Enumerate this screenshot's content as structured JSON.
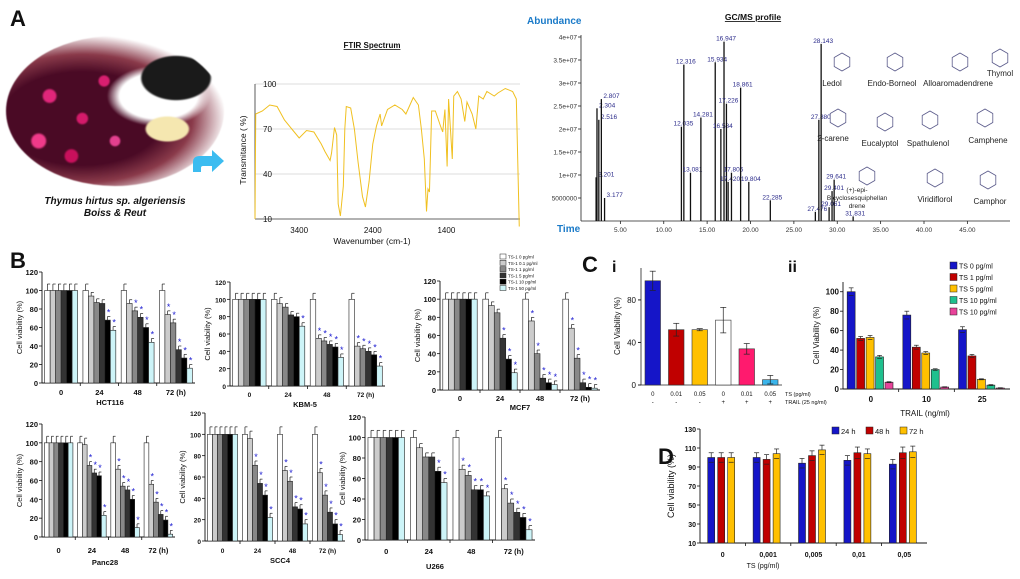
{
  "panel_labels": {
    "A": "A",
    "B": "B",
    "C": "C",
    "C_i": "i",
    "C_ii": "ii",
    "D": "D"
  },
  "photo": {
    "caption_line1": "Thymus hirtus sp. algeriensis",
    "caption_line2": "Boiss & Reut"
  },
  "structures": [
    "Ledol",
    "Endo-Borneol",
    "Alloaromadendrene",
    "Thymol",
    "2-carene",
    "Eucalyptol",
    "Spathulenol",
    "Camphene",
    "(+)-epi-",
    "Bicyclosesquiphellan",
    "drene",
    "Viridiflorol",
    "Camphor"
  ],
  "b_legend": {
    "labels": [
      "TS-1 0 pg/ml",
      "TS-1 0.1 pg/ml",
      "TS-1 1 pg/ml",
      "TS-1 5 pg/ml",
      "TS-1 10 pg/ml",
      "TS-1 50 pg/ml"
    ],
    "colors": [
      "#ffffff",
      "#cccccc",
      "#888888",
      "#333333",
      "#000000",
      "#cdf4f8"
    ]
  },
  "chart_data": [
    {
      "id": "ftir",
      "type": "line",
      "title": "FTIR  Spectrum",
      "xlabel": "Wavenumber (cm-1)",
      "ylabel": "Transmitance ( %)",
      "xlim": [
        4000,
        400
      ],
      "ylim": [
        10,
        100
      ],
      "xticks": [
        3400,
        2400,
        1400
      ],
      "yticks": [
        10,
        40,
        70,
        100
      ],
      "color": "#f0c020",
      "points": [
        [
          4000,
          10
        ],
        [
          3990,
          80
        ],
        [
          3900,
          82
        ],
        [
          3800,
          86
        ],
        [
          3700,
          85
        ],
        [
          3600,
          76
        ],
        [
          3500,
          70
        ],
        [
          3400,
          64
        ],
        [
          3300,
          69
        ],
        [
          3200,
          68
        ],
        [
          3100,
          60
        ],
        [
          3050,
          55
        ],
        [
          2980,
          49
        ],
        [
          2960,
          54
        ],
        [
          2920,
          71
        ],
        [
          2890,
          66
        ],
        [
          2870,
          20
        ],
        [
          2840,
          12
        ],
        [
          2800,
          32
        ],
        [
          2780,
          70
        ],
        [
          2760,
          85
        ],
        [
          2700,
          84
        ],
        [
          2650,
          70
        ],
        [
          2600,
          48
        ],
        [
          2540,
          25
        ],
        [
          2500,
          18
        ],
        [
          2450,
          35
        ],
        [
          2400,
          60
        ],
        [
          2350,
          72
        ],
        [
          2300,
          80
        ],
        [
          2280,
          72
        ],
        [
          2200,
          83
        ],
        [
          2100,
          86
        ],
        [
          2000,
          83
        ],
        [
          1950,
          80
        ],
        [
          1850,
          91
        ],
        [
          1780,
          86
        ],
        [
          1740,
          70
        ],
        [
          1700,
          50
        ],
        [
          1670,
          15
        ],
        [
          1650,
          30
        ],
        [
          1630,
          28
        ],
        [
          1600,
          82
        ],
        [
          1550,
          82
        ],
        [
          1480,
          72
        ],
        [
          1450,
          68
        ],
        [
          1420,
          83
        ],
        [
          1390,
          45
        ],
        [
          1370,
          90
        ],
        [
          1320,
          50
        ],
        [
          1300,
          92
        ],
        [
          1250,
          95
        ],
        [
          1200,
          90
        ],
        [
          1150,
          75
        ],
        [
          1120,
          88
        ],
        [
          1050,
          80
        ],
        [
          1000,
          70
        ],
        [
          960,
          92
        ],
        [
          900,
          90
        ],
        [
          850,
          95
        ],
        [
          750,
          92
        ],
        [
          700,
          94
        ],
        [
          600,
          97
        ],
        [
          500,
          95
        ],
        [
          450,
          90
        ],
        [
          410,
          5
        ]
      ]
    },
    {
      "id": "gcms",
      "type": "bar",
      "title": "GC/MS  profile",
      "ylabel": "Abundance",
      "xlabel": "Time",
      "xlim": [
        0.5,
        50
      ],
      "ylim": [
        0,
        40000000
      ],
      "yticks": [
        {
          "v": 5000000,
          "label": "5000000"
        },
        {
          "v": 10000000,
          "label": "1e+07"
        },
        {
          "v": 15000000,
          "label": "1.5e+07"
        },
        {
          "v": 20000000,
          "label": "2e+07"
        },
        {
          "v": 25000000,
          "label": "2.5e+07"
        },
        {
          "v": 30000000,
          "label": "3e+07"
        },
        {
          "v": 35000000,
          "label": "3.5e+07"
        },
        {
          "v": 40000000,
          "label": "4e+07"
        }
      ],
      "xticks": [
        {
          "v": 5,
          "label": "5.00"
        },
        {
          "v": 10,
          "label": "10.00"
        },
        {
          "v": 15,
          "label": "15.00"
        },
        {
          "v": 20,
          "label": "20.00"
        },
        {
          "v": 25,
          "label": "25.00"
        },
        {
          "v": 30,
          "label": "30.00"
        },
        {
          "v": 35,
          "label": "35.00"
        },
        {
          "v": 40,
          "label": "40.00"
        },
        {
          "v": 45,
          "label": "45.00"
        }
      ],
      "peaks": [
        {
          "t": 2.201,
          "a": 9500000,
          "label": "2.201"
        },
        {
          "t": 2.304,
          "a": 24500000,
          "label": "2.304"
        },
        {
          "t": 2.516,
          "a": 22000000,
          "label": "2.516"
        },
        {
          "t": 2.807,
          "a": 26500000,
          "label": "2.807"
        },
        {
          "t": 3.177,
          "a": 5000000,
          "label": "3.177"
        },
        {
          "t": 12.035,
          "a": 20500000,
          "label": "12.035"
        },
        {
          "t": 12.316,
          "a": 34000000,
          "label": "12.316"
        },
        {
          "t": 13.081,
          "a": 10500000,
          "label": "13.081"
        },
        {
          "t": 14.281,
          "a": 22500000,
          "label": "14.281"
        },
        {
          "t": 15.934,
          "a": 34500000,
          "label": "15.934"
        },
        {
          "t": 16.584,
          "a": 20000000,
          "label": "16.584"
        },
        {
          "t": 16.947,
          "a": 39000000,
          "label": "16.947"
        },
        {
          "t": 17.226,
          "a": 25500000,
          "label": "17.226"
        },
        {
          "t": 17.42,
          "a": 8500000,
          "label": "17.420"
        },
        {
          "t": 17.806,
          "a": 10500000,
          "label": "17.806"
        },
        {
          "t": 18.861,
          "a": 29000000,
          "label": "18.861"
        },
        {
          "t": 19.804,
          "a": 8500000,
          "label": "19.804"
        },
        {
          "t": 22.285,
          "a": 4500000,
          "label": "22.285"
        },
        {
          "t": 27.476,
          "a": 2000000,
          "label": "27.476"
        },
        {
          "t": 27.88,
          "a": 22000000,
          "label": "27.880"
        },
        {
          "t": 28.143,
          "a": 38500000,
          "label": "28.143"
        },
        {
          "t": 29.061,
          "a": 3000000,
          "label": "29.061"
        },
        {
          "t": 29.401,
          "a": 6500000,
          "label": "29.401"
        },
        {
          "t": 29.641,
          "a": 9000000,
          "label": "29.641"
        },
        {
          "t": 31.831,
          "a": 1000000,
          "label": "31.831"
        }
      ]
    },
    {
      "id": "hct116",
      "type": "bar",
      "cell_line": "HCT116",
      "ylabel": "Cell viability (%)",
      "ylim": [
        0,
        120
      ],
      "yticks": [
        0,
        20,
        40,
        60,
        80,
        100,
        120
      ],
      "categories": [
        "0",
        "24",
        "48",
        "72 (h)"
      ],
      "groups": [
        [
          100,
          100,
          100,
          100,
          100,
          100
        ],
        [
          100,
          94,
          87,
          86,
          68,
          57
        ],
        [
          100,
          86,
          78,
          71,
          60,
          44
        ],
        [
          100,
          74,
          65,
          36,
          27,
          16
        ]
      ]
    },
    {
      "id": "kbm5",
      "type": "bar",
      "cell_line": "KBM-5",
      "ylabel": "Cell viability (%)",
      "ylim": [
        0,
        120
      ],
      "yticks": [
        0,
        20,
        40,
        60,
        80,
        100,
        120
      ],
      "categories": [
        "0",
        "24",
        "48",
        "72 (h)"
      ],
      "groups": [
        [
          100,
          100,
          100,
          100,
          100,
          100
        ],
        [
          100,
          95,
          91,
          82,
          80,
          69
        ],
        [
          100,
          55,
          52,
          48,
          45,
          33
        ],
        [
          100,
          46,
          43,
          40,
          36,
          23
        ]
      ]
    },
    {
      "id": "mcf7",
      "type": "bar",
      "cell_line": "MCF7",
      "ylabel": "Cell viability (%)",
      "ylim": [
        0,
        120
      ],
      "yticks": [
        0,
        20,
        40,
        60,
        80,
        100,
        120
      ],
      "categories": [
        "0",
        "24",
        "48",
        "72 (h)"
      ],
      "groups": [
        [
          100,
          100,
          100,
          100,
          100,
          100
        ],
        [
          100,
          93,
          85,
          57,
          34,
          19
        ],
        [
          100,
          76,
          40,
          13,
          8,
          6
        ],
        [
          100,
          68,
          35,
          8,
          3,
          2
        ]
      ]
    },
    {
      "id": "panc28",
      "type": "bar",
      "cell_line": "Panc28",
      "ylabel": "Cell viability (%)",
      "ylim": [
        0,
        120
      ],
      "yticks": [
        0,
        20,
        40,
        60,
        80,
        100,
        120
      ],
      "categories": [
        "0",
        "24",
        "48",
        "72 (h)"
      ],
      "groups": [
        [
          100,
          100,
          100,
          100,
          100,
          100
        ],
        [
          100,
          98,
          76,
          68,
          65,
          23
        ],
        [
          100,
          72,
          54,
          50,
          40,
          10
        ],
        [
          100,
          56,
          37,
          24,
          18,
          3
        ]
      ]
    },
    {
      "id": "scc4",
      "type": "bar",
      "cell_line": "SCC4",
      "ylabel": "Cell viability (%)",
      "ylim": [
        0,
        120
      ],
      "yticks": [
        0,
        20,
        40,
        60,
        80,
        100,
        120
      ],
      "categories": [
        "0",
        "24",
        "48",
        "72 (h)"
      ],
      "groups": [
        [
          100,
          100,
          100,
          100,
          100,
          100
        ],
        [
          100,
          96,
          71,
          54,
          43,
          22
        ],
        [
          100,
          66,
          56,
          32,
          30,
          16
        ],
        [
          100,
          64,
          43,
          27,
          16,
          6
        ]
      ]
    },
    {
      "id": "u266",
      "type": "bar",
      "cell_line": "U266",
      "ylabel": "Cell viability (%)",
      "ylim": [
        0,
        120
      ],
      "yticks": [
        0,
        20,
        40,
        60,
        80,
        100,
        120
      ],
      "categories": [
        "0",
        "24",
        "48",
        "72 (h)"
      ],
      "groups": [
        [
          100,
          100,
          100,
          100,
          100,
          100
        ],
        [
          100,
          90,
          81,
          81,
          67,
          56
        ],
        [
          100,
          69,
          63,
          49,
          49,
          43
        ],
        [
          100,
          50,
          36,
          27,
          22,
          10
        ]
      ]
    },
    {
      "id": "c_i",
      "type": "bar",
      "ylabel": "Cell Viability (%)",
      "ylim": [
        0,
        110
      ],
      "yticks": [
        0,
        40,
        80
      ],
      "row_labels": [
        "TS (pg/ml)",
        "TRAIL (25 ng/ml)"
      ],
      "ts": [
        "0",
        "0.01",
        "0.05",
        "0",
        "0.01",
        "0.05"
      ],
      "trail": [
        "-",
        "-",
        "-",
        "+",
        "+",
        "+"
      ],
      "values": [
        98,
        52,
        52,
        61,
        34,
        5
      ],
      "errors": [
        9,
        6,
        1,
        12,
        5,
        4
      ],
      "bar_colors": [
        "#1515c8",
        "#c00000",
        "#ffc000",
        "#ffffff",
        "#ff1a6e",
        "#3ab4ea"
      ]
    },
    {
      "id": "c_ii",
      "type": "bar",
      "ylabel": "Cell Viability (%)",
      "xlabel": "TRAIL (ng/ml)",
      "ylim": [
        0,
        110
      ],
      "yticks": [
        0,
        20,
        40,
        60,
        80,
        100
      ],
      "categories": [
        "0",
        "10",
        "25"
      ],
      "series": [
        {
          "name": "TS 0 pg/ml",
          "color": "#1515c8",
          "values": [
            100,
            76,
            61
          ],
          "errors": [
            4,
            4,
            3
          ]
        },
        {
          "name": "TS 1 pg/ml",
          "color": "#c00000",
          "values": [
            52,
            43,
            34
          ],
          "errors": [
            2,
            2,
            1.5
          ]
        },
        {
          "name": "TS 5 pg/ml",
          "color": "#ffc000",
          "values": [
            53,
            37,
            10
          ],
          "errors": [
            2,
            1.5,
            0.5
          ]
        },
        {
          "name": "TS 10 pg/ml",
          "color": "#1fc08e",
          "values": [
            33,
            20,
            4
          ],
          "errors": [
            1.5,
            0.8,
            0.5
          ]
        },
        {
          "name": "TS 10 pg/ml",
          "color": "#e8439a",
          "values": [
            7,
            2,
            1
          ],
          "errors": [
            0.5,
            0.3,
            0.3
          ]
        }
      ]
    },
    {
      "id": "d",
      "type": "bar",
      "ylabel": "Cell viability (%)",
      "xlabel": "TS (pg/ml)",
      "ylim": [
        10,
        130
      ],
      "yticks": [
        10,
        30,
        50,
        70,
        90,
        110,
        130
      ],
      "categories": [
        "0",
        "0,001",
        "0,005",
        "0,01",
        "0,05"
      ],
      "series": [
        {
          "name": "24 h",
          "color": "#1515c8",
          "values": [
            100,
            100,
            94,
            97,
            93
          ],
          "errors": [
            5,
            5,
            5,
            5,
            5
          ]
        },
        {
          "name": "48 h",
          "color": "#c00000",
          "values": [
            100,
            98,
            102,
            105,
            105
          ],
          "errors": [
            5,
            5,
            5,
            6,
            6
          ]
        },
        {
          "name": "72 h",
          "color": "#ffc000",
          "values": [
            100,
            104,
            108,
            104,
            106
          ],
          "errors": [
            5,
            5,
            5,
            5,
            6
          ]
        }
      ]
    }
  ]
}
